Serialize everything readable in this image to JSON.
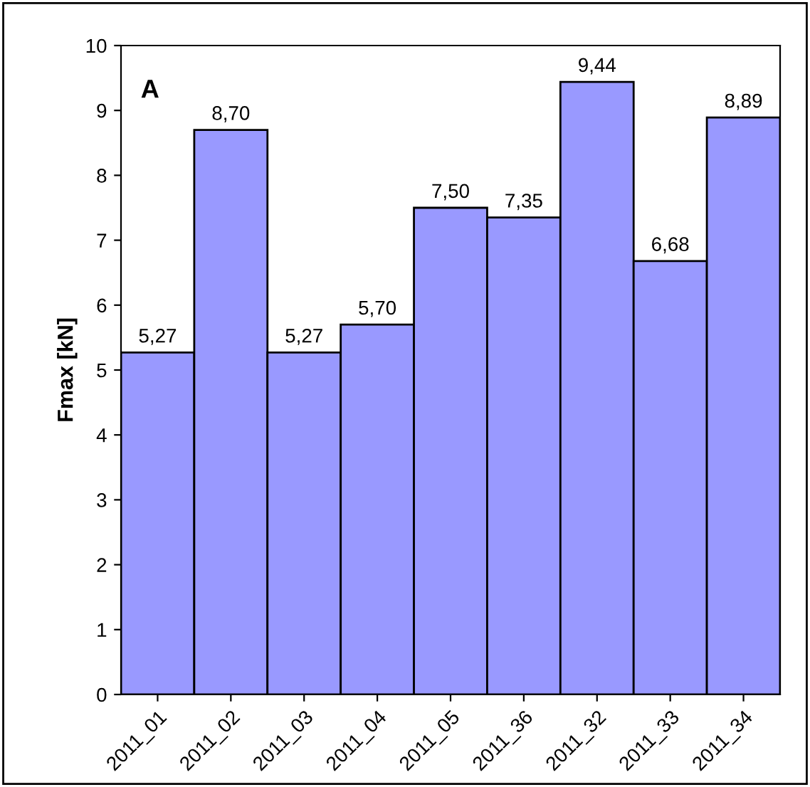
{
  "chart_data": {
    "type": "bar",
    "ylabel": "Fmax [kN]",
    "annotations": [
      "A"
    ],
    "categories": [
      "2011_01",
      "2011_02",
      "2011_03",
      "2011_04",
      "2011_05",
      "2011_36",
      "2011_32",
      "2011_33",
      "2011_34"
    ],
    "values": [
      5.27,
      8.7,
      5.27,
      5.7,
      7.5,
      7.35,
      9.44,
      6.68,
      8.89
    ],
    "value_labels": [
      "5,27",
      "8,70",
      "5,27",
      "5,70",
      "7,50",
      "7,35",
      "9,44",
      "6,68",
      "8,89"
    ],
    "color": "#9999ff",
    "ylim": [
      0,
      10
    ],
    "yticks": [
      0,
      1,
      2,
      3,
      4,
      5,
      6,
      7,
      8,
      9,
      10
    ],
    "grid": false
  }
}
